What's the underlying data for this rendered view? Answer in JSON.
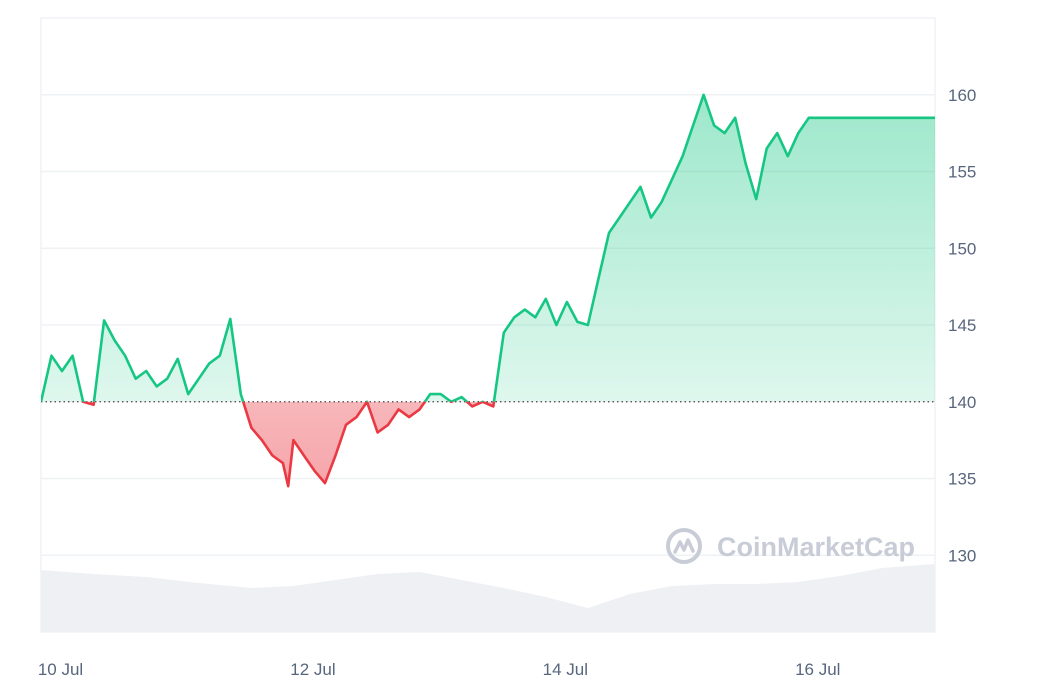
{
  "watermark": {
    "text": "CoinMarketCap",
    "icon": "coinmarketcap-logo-icon"
  },
  "colors": {
    "up_line": "#16c784",
    "down_line": "#ea3943",
    "up_fill": "#16c784",
    "down_fill": "#ea3943",
    "baseline": "#444444",
    "grid": "#eff2f5",
    "volume_fill": "#eef0f3",
    "axis_text": "#58667e"
  },
  "chart_data": {
    "type": "area",
    "title": "",
    "xlabel": "",
    "ylabel": "",
    "y_axis_position": "right",
    "ylim": [
      125,
      165
    ],
    "yticks": [
      130,
      135,
      140,
      145,
      150,
      155,
      160
    ],
    "xlim": [
      "2024-07-09 22:00",
      "2024-07-17 00:00"
    ],
    "xticks": [
      {
        "label": "10 Jul",
        "x": "2024-07-10 00:00"
      },
      {
        "label": "12 Jul",
        "x": "2024-07-12 00:00"
      },
      {
        "label": "14 Jul",
        "x": "2024-07-14 00:00"
      },
      {
        "label": "16 Jul",
        "x": "2024-07-16 00:00"
      }
    ],
    "baseline_value": 140,
    "grid": true,
    "legend": "none",
    "price_series": {
      "name": "",
      "x": [
        "2024-07-09 22:00",
        "2024-07-10 00:00",
        "2024-07-10 02:00",
        "2024-07-10 04:00",
        "2024-07-10 06:00",
        "2024-07-10 08:00",
        "2024-07-10 10:00",
        "2024-07-10 12:00",
        "2024-07-10 14:00",
        "2024-07-10 16:00",
        "2024-07-10 18:00",
        "2024-07-10 20:00",
        "2024-07-10 22:00",
        "2024-07-11 00:00",
        "2024-07-11 02:00",
        "2024-07-11 04:00",
        "2024-07-11 06:00",
        "2024-07-11 08:00",
        "2024-07-11 10:00",
        "2024-07-11 12:00",
        "2024-07-11 14:00",
        "2024-07-11 16:00",
        "2024-07-11 18:00",
        "2024-07-11 20:00",
        "2024-07-11 21:00",
        "2024-07-11 22:00",
        "2024-07-12 00:00",
        "2024-07-12 02:00",
        "2024-07-12 04:00",
        "2024-07-12 06:00",
        "2024-07-12 08:00",
        "2024-07-12 10:00",
        "2024-07-12 12:00",
        "2024-07-12 14:00",
        "2024-07-12 16:00",
        "2024-07-12 18:00",
        "2024-07-12 20:00",
        "2024-07-12 22:00",
        "2024-07-13 00:00",
        "2024-07-13 02:00",
        "2024-07-13 04:00",
        "2024-07-13 06:00",
        "2024-07-13 08:00",
        "2024-07-13 10:00",
        "2024-07-13 12:00",
        "2024-07-13 14:00",
        "2024-07-13 16:00",
        "2024-07-13 18:00",
        "2024-07-13 20:00",
        "2024-07-13 22:00",
        "2024-07-14 00:00",
        "2024-07-14 02:00",
        "2024-07-14 04:00",
        "2024-07-14 06:00",
        "2024-07-14 08:00",
        "2024-07-14 10:00",
        "2024-07-14 12:00",
        "2024-07-14 14:00",
        "2024-07-14 16:00",
        "2024-07-14 18:00",
        "2024-07-14 20:00",
        "2024-07-14 22:00",
        "2024-07-15 00:00",
        "2024-07-15 02:00",
        "2024-07-15 04:00",
        "2024-07-15 06:00",
        "2024-07-15 08:00",
        "2024-07-15 10:00",
        "2024-07-15 12:00",
        "2024-07-15 14:00",
        "2024-07-15 16:00",
        "2024-07-15 18:00",
        "2024-07-15 20:00",
        "2024-07-15 22:00",
        "2024-07-16 00:00",
        "2024-07-16 02:00",
        "2024-07-16 04:00",
        "2024-07-16 06:00",
        "2024-07-16 08:00",
        "2024-07-16 10:00",
        "2024-07-16 12:00",
        "2024-07-16 14:00",
        "2024-07-16 16:00",
        "2024-07-16 18:00",
        "2024-07-16 20:00",
        "2024-07-16 22:00",
        "2024-07-17 00:00"
      ],
      "y": [
        140.0,
        143.0,
        142.0,
        143.0,
        140.0,
        139.8,
        145.3,
        144.0,
        143.0,
        141.5,
        142.0,
        141.0,
        141.5,
        142.8,
        140.5,
        141.5,
        142.5,
        143.0,
        145.4,
        140.5,
        138.3,
        137.5,
        136.5,
        136.0,
        134.5,
        137.5,
        136.5,
        135.5,
        134.7,
        136.5,
        138.5,
        139.0,
        140.0,
        138.0,
        138.5,
        139.5,
        139.0,
        139.5,
        140.5,
        140.5,
        140.0,
        140.3,
        139.7,
        140.0,
        139.7,
        144.5,
        145.5,
        146.0,
        145.5,
        146.7,
        145.0,
        146.5,
        145.2,
        145.0,
        148.0,
        151.0,
        152.0,
        153.0,
        154.0,
        152.0,
        153.0,
        154.5,
        156.0,
        158.0,
        160.0,
        158.0,
        157.5,
        158.5,
        155.5,
        153.2,
        156.5,
        157.5,
        156.0,
        157.5,
        158.5,
        158.5,
        158.5,
        158.5,
        158.5,
        158.5,
        158.5,
        158.5,
        158.5,
        158.5,
        158.5,
        158.5,
        158.5
      ]
    },
    "volume_series": {
      "name": "",
      "x": [
        "2024-07-09 22:00",
        "2024-07-10 08:00",
        "2024-07-10 18:00",
        "2024-07-11 04:00",
        "2024-07-11 14:00",
        "2024-07-11 22:00",
        "2024-07-12 06:00",
        "2024-07-12 14:00",
        "2024-07-12 22:00",
        "2024-07-13 06:00",
        "2024-07-13 14:00",
        "2024-07-13 22:00",
        "2024-07-14 06:00",
        "2024-07-14 14:00",
        "2024-07-14 22:00",
        "2024-07-15 06:00",
        "2024-07-15 14:00",
        "2024-07-15 22:00",
        "2024-07-16 06:00",
        "2024-07-16 14:00",
        "2024-07-17 00:00"
      ],
      "relative_level": [
        0.62,
        0.58,
        0.55,
        0.49,
        0.44,
        0.46,
        0.52,
        0.58,
        0.6,
        0.52,
        0.44,
        0.35,
        0.24,
        0.38,
        0.46,
        0.48,
        0.48,
        0.5,
        0.56,
        0.64,
        0.68
      ]
    }
  }
}
